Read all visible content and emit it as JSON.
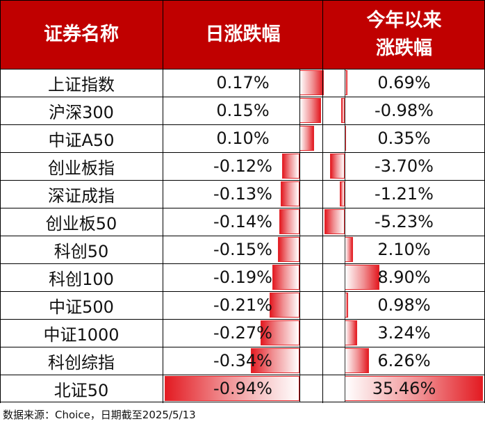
{
  "header": {
    "col_name": "证券名称",
    "col_daily": "日涨跌幅",
    "col_ytd_line1": "今年以来",
    "col_ytd_line2": "涨跌幅"
  },
  "source_note": "数据来源：Choice，日期截至2025/5/13",
  "colors": {
    "header_bg": "#c00000",
    "header_text": "#ffffff",
    "bar": "#e31b22"
  },
  "chart_data": {
    "type": "table",
    "columns": [
      "证券名称",
      "日涨跌幅",
      "今年以来涨跌幅"
    ],
    "rows": [
      {
        "name": "上证指数",
        "daily": 0.17,
        "daily_label": "0.17%",
        "ytd": 0.69,
        "ytd_label": "0.69%"
      },
      {
        "name": "沪深300",
        "daily": 0.15,
        "daily_label": "0.15%",
        "ytd": -0.98,
        "ytd_label": "-0.98%"
      },
      {
        "name": "中证A50",
        "daily": 0.1,
        "daily_label": "0.10%",
        "ytd": 0.35,
        "ytd_label": "0.35%"
      },
      {
        "name": "创业板指",
        "daily": -0.12,
        "daily_label": "-0.12%",
        "ytd": -3.7,
        "ytd_label": "-3.70%"
      },
      {
        "name": "深证成指",
        "daily": -0.13,
        "daily_label": "-0.13%",
        "ytd": -1.21,
        "ytd_label": "-1.21%"
      },
      {
        "name": "创业板50",
        "daily": -0.14,
        "daily_label": "-0.14%",
        "ytd": -5.23,
        "ytd_label": "-5.23%"
      },
      {
        "name": "科创50",
        "daily": -0.15,
        "daily_label": "-0.15%",
        "ytd": 2.1,
        "ytd_label": "2.10%"
      },
      {
        "name": "科创100",
        "daily": -0.19,
        "daily_label": "-0.19%",
        "ytd": 8.9,
        "ytd_label": "8.90%"
      },
      {
        "name": "中证500",
        "daily": -0.21,
        "daily_label": "-0.21%",
        "ytd": 0.98,
        "ytd_label": "0.98%"
      },
      {
        "name": "中证1000",
        "daily": -0.27,
        "daily_label": "-0.27%",
        "ytd": 3.24,
        "ytd_label": "3.24%"
      },
      {
        "name": "科创综指",
        "daily": -0.34,
        "daily_label": "-0.34%",
        "ytd": 6.26,
        "ytd_label": "6.26%"
      },
      {
        "name": "北证50",
        "daily": -0.94,
        "daily_label": "-0.94%",
        "ytd": 35.46,
        "ytd_label": "35.46%"
      }
    ]
  }
}
